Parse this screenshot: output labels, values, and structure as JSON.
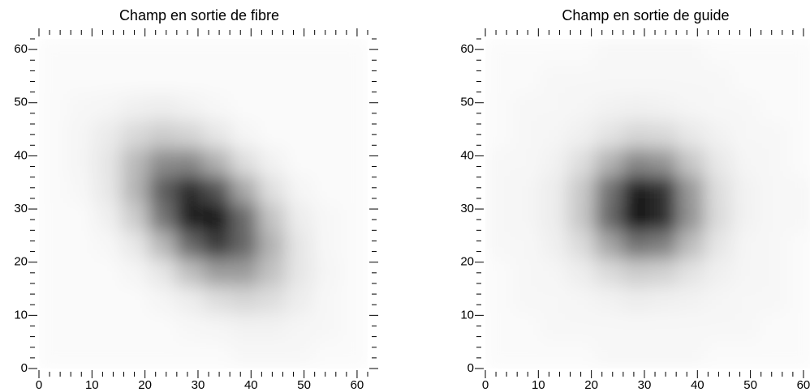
{
  "chart_data": [
    {
      "type": "heatmap",
      "title": "Champ en sortie de fibre",
      "xlim": [
        0,
        62
      ],
      "ylim": [
        0,
        62
      ],
      "zlim": [
        0,
        100
      ],
      "color": "#000000",
      "xticks": [
        0,
        10,
        20,
        30,
        40,
        50,
        60
      ],
      "yticks": [
        0,
        10,
        20,
        30,
        40,
        50,
        60
      ],
      "minorticks": [
        2,
        4,
        6,
        8,
        12,
        14,
        16,
        18,
        22,
        24,
        26,
        28,
        32,
        34,
        36,
        38,
        42,
        44,
        46,
        48,
        52,
        54,
        56,
        58,
        62
      ],
      "values": [
        [
          2,
          2,
          2,
          2,
          2,
          2,
          2,
          2,
          2,
          2,
          2,
          2
        ],
        [
          2,
          2,
          2,
          2,
          2,
          2,
          2,
          2,
          2,
          2,
          2,
          2
        ],
        [
          2,
          3,
          4,
          6,
          7,
          5,
          3,
          2,
          2,
          2,
          2,
          2
        ],
        [
          2,
          4,
          8,
          15,
          20,
          17,
          10,
          4,
          2,
          2,
          2,
          2
        ],
        [
          2,
          4,
          10,
          27,
          45,
          47,
          31,
          13,
          5,
          2,
          2,
          2
        ],
        [
          2,
          3,
          9,
          29,
          63,
          83,
          68,
          34,
          12,
          4,
          2,
          2
        ],
        [
          2,
          2,
          6,
          20,
          54,
          90,
          92,
          58,
          23,
          7,
          3,
          2
        ],
        [
          2,
          2,
          3,
          9,
          28,
          59,
          77,
          60,
          30,
          10,
          3,
          2
        ],
        [
          2,
          2,
          2,
          4,
          10,
          25,
          39,
          39,
          24,
          10,
          4,
          2
        ],
        [
          2,
          2,
          2,
          2,
          4,
          7,
          13,
          16,
          13,
          7,
          3,
          2
        ],
        [
          2,
          2,
          2,
          2,
          2,
          3,
          4,
          5,
          5,
          4,
          3,
          2
        ],
        [
          2,
          2,
          2,
          2,
          2,
          2,
          2,
          3,
          3,
          3,
          2,
          2
        ]
      ]
    },
    {
      "type": "heatmap",
      "title": "Champ en sortie de guide",
      "xlim": [
        0,
        62
      ],
      "ylim": [
        0,
        62
      ],
      "zlim": [
        0,
        100
      ],
      "color": "#000000",
      "xticks": [
        0,
        10,
        20,
        30,
        40,
        50,
        60
      ],
      "yticks": [
        0,
        10,
        20,
        30,
        40,
        50,
        60
      ],
      "minorticks": [
        2,
        4,
        6,
        8,
        12,
        14,
        16,
        18,
        22,
        24,
        26,
        28,
        32,
        34,
        36,
        38,
        42,
        44,
        46,
        48,
        52,
        54,
        56,
        58,
        62
      ],
      "values": [
        [
          2,
          2,
          2,
          2,
          3,
          3,
          3,
          3,
          2,
          2,
          2,
          2
        ],
        [
          2,
          2,
          3,
          3,
          3,
          3,
          3,
          3,
          3,
          2,
          2,
          2
        ],
        [
          2,
          3,
          3,
          4,
          5,
          6,
          5,
          4,
          3,
          3,
          2,
          2
        ],
        [
          2,
          3,
          4,
          6,
          11,
          16,
          15,
          9,
          5,
          3,
          3,
          2
        ],
        [
          3,
          3,
          5,
          13,
          30,
          47,
          42,
          22,
          9,
          4,
          3,
          2
        ],
        [
          3,
          4,
          7,
          21,
          55,
          89,
          80,
          40,
          13,
          5,
          3,
          3
        ],
        [
          3,
          4,
          7,
          22,
          59,
          95,
          84,
          42,
          14,
          5,
          3,
          3
        ],
        [
          3,
          3,
          6,
          14,
          35,
          55,
          50,
          26,
          10,
          4,
          3,
          2
        ],
        [
          2,
          3,
          4,
          7,
          14,
          20,
          18,
          11,
          6,
          4,
          3,
          2
        ],
        [
          2,
          3,
          3,
          4,
          5,
          7,
          6,
          5,
          4,
          3,
          3,
          2
        ],
        [
          2,
          2,
          3,
          3,
          3,
          3,
          3,
          3,
          3,
          3,
          2,
          2
        ],
        [
          2,
          2,
          2,
          2,
          3,
          3,
          3,
          3,
          2,
          2,
          2,
          2
        ]
      ]
    }
  ]
}
